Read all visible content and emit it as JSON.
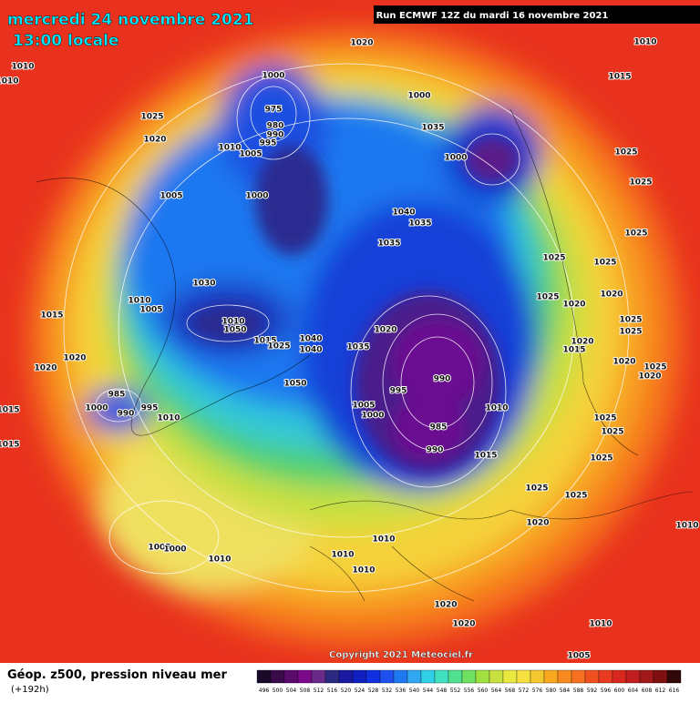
{
  "header": {
    "date": "mercredi 24 novembre 2021",
    "time": "13:00 locale",
    "run": "Run ECMWF 12Z du mardi 16 novembre 2021"
  },
  "map": {
    "pressure_labels": [
      "1020",
      "1010",
      "1010",
      "1010",
      "1015",
      "1000",
      "1000",
      "975",
      "1025",
      "980",
      "990",
      "1035",
      "1020",
      "995",
      "1010",
      "1005",
      "1000",
      "1025",
      "1025",
      "1005",
      "1000",
      "1040",
      "1035",
      "1025",
      "1035",
      "1025",
      "1025",
      "1030",
      "1010",
      "1025",
      "1020",
      "1020",
      "1005",
      "1015",
      "1025",
      "1010",
      "1050",
      "1020",
      "1040",
      "1020",
      "1025",
      "1015",
      "1015",
      "1025",
      "1040",
      "1035",
      "1020",
      "1020",
      "1020",
      "1025",
      "1020",
      "990",
      "1050",
      "995",
      "985",
      "1005",
      "1010",
      "1000",
      "995",
      "1015",
      "990",
      "1000",
      "1010",
      "1025",
      "985",
      "1025",
      "1015",
      "990",
      "1015",
      "1025",
      "1025",
      "1025",
      "1020",
      "1010",
      "1010",
      "1005",
      "1000",
      "1010",
      "1010",
      "1010",
      "1020",
      "1020",
      "1010",
      "1005"
    ]
  },
  "footer": {
    "copyright": "Copyright 2021 Meteociel.fr",
    "title": "Géop. z500, pression niveau mer",
    "lead": "(+192h)",
    "scale": [
      496,
      500,
      504,
      508,
      512,
      516,
      520,
      524,
      528,
      532,
      536,
      540,
      544,
      548,
      552,
      556,
      560,
      564,
      568,
      572,
      576,
      580,
      584,
      588,
      592,
      596,
      600,
      604,
      608,
      612,
      616
    ]
  }
}
